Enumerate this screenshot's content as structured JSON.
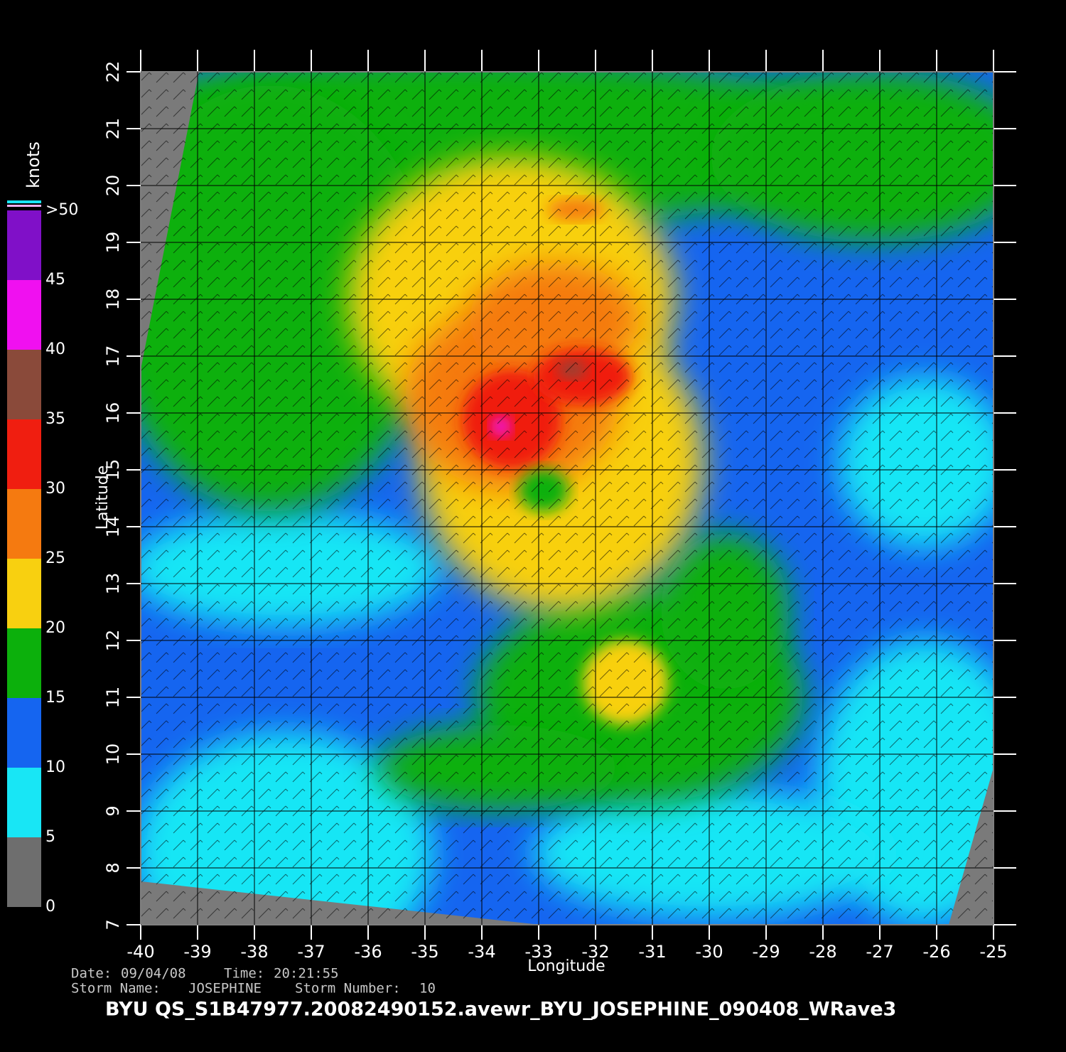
{
  "map": {
    "title": "BYU QS_S1B47977.20082490152.avewr_BYU_JOSEPHINE_090408_WRave3",
    "xlabel": "Longitude",
    "ylabel": "Latitude",
    "xlim": [
      -40,
      -25
    ],
    "ylim": [
      7,
      22
    ],
    "xticks": [
      -40,
      -39,
      -38,
      -37,
      -36,
      -35,
      -34,
      -33,
      -32,
      -31,
      -30,
      -29,
      -28,
      -27,
      -26,
      -25
    ],
    "yticks": [
      7,
      8,
      9,
      10,
      11,
      12,
      13,
      14,
      15,
      16,
      17,
      18,
      19,
      20,
      21,
      22
    ],
    "grid": true,
    "colorbar": {
      "title": "knots",
      "ticks": [
        0,
        5,
        10,
        15,
        20,
        25,
        30,
        35,
        40,
        45,
        {
          "value": 50,
          "label": ">50"
        }
      ],
      "colors": [
        "#6e6e6e",
        "#18e6f5",
        "#1565f0",
        "#0cb00c",
        "#f8d010",
        "#f57a10",
        "#f01e10",
        "#8a4a3a",
        "#f010f0",
        "#8010c8"
      ]
    },
    "info": {
      "date_label": "Date:",
      "date": "09/04/08",
      "time_label": "Time:",
      "time": "20:21:55",
      "storm_name_label": "Storm Name:",
      "storm_name": "JOSEPHINE",
      "storm_number_label": "Storm Number:",
      "storm_number": 10
    }
  }
}
